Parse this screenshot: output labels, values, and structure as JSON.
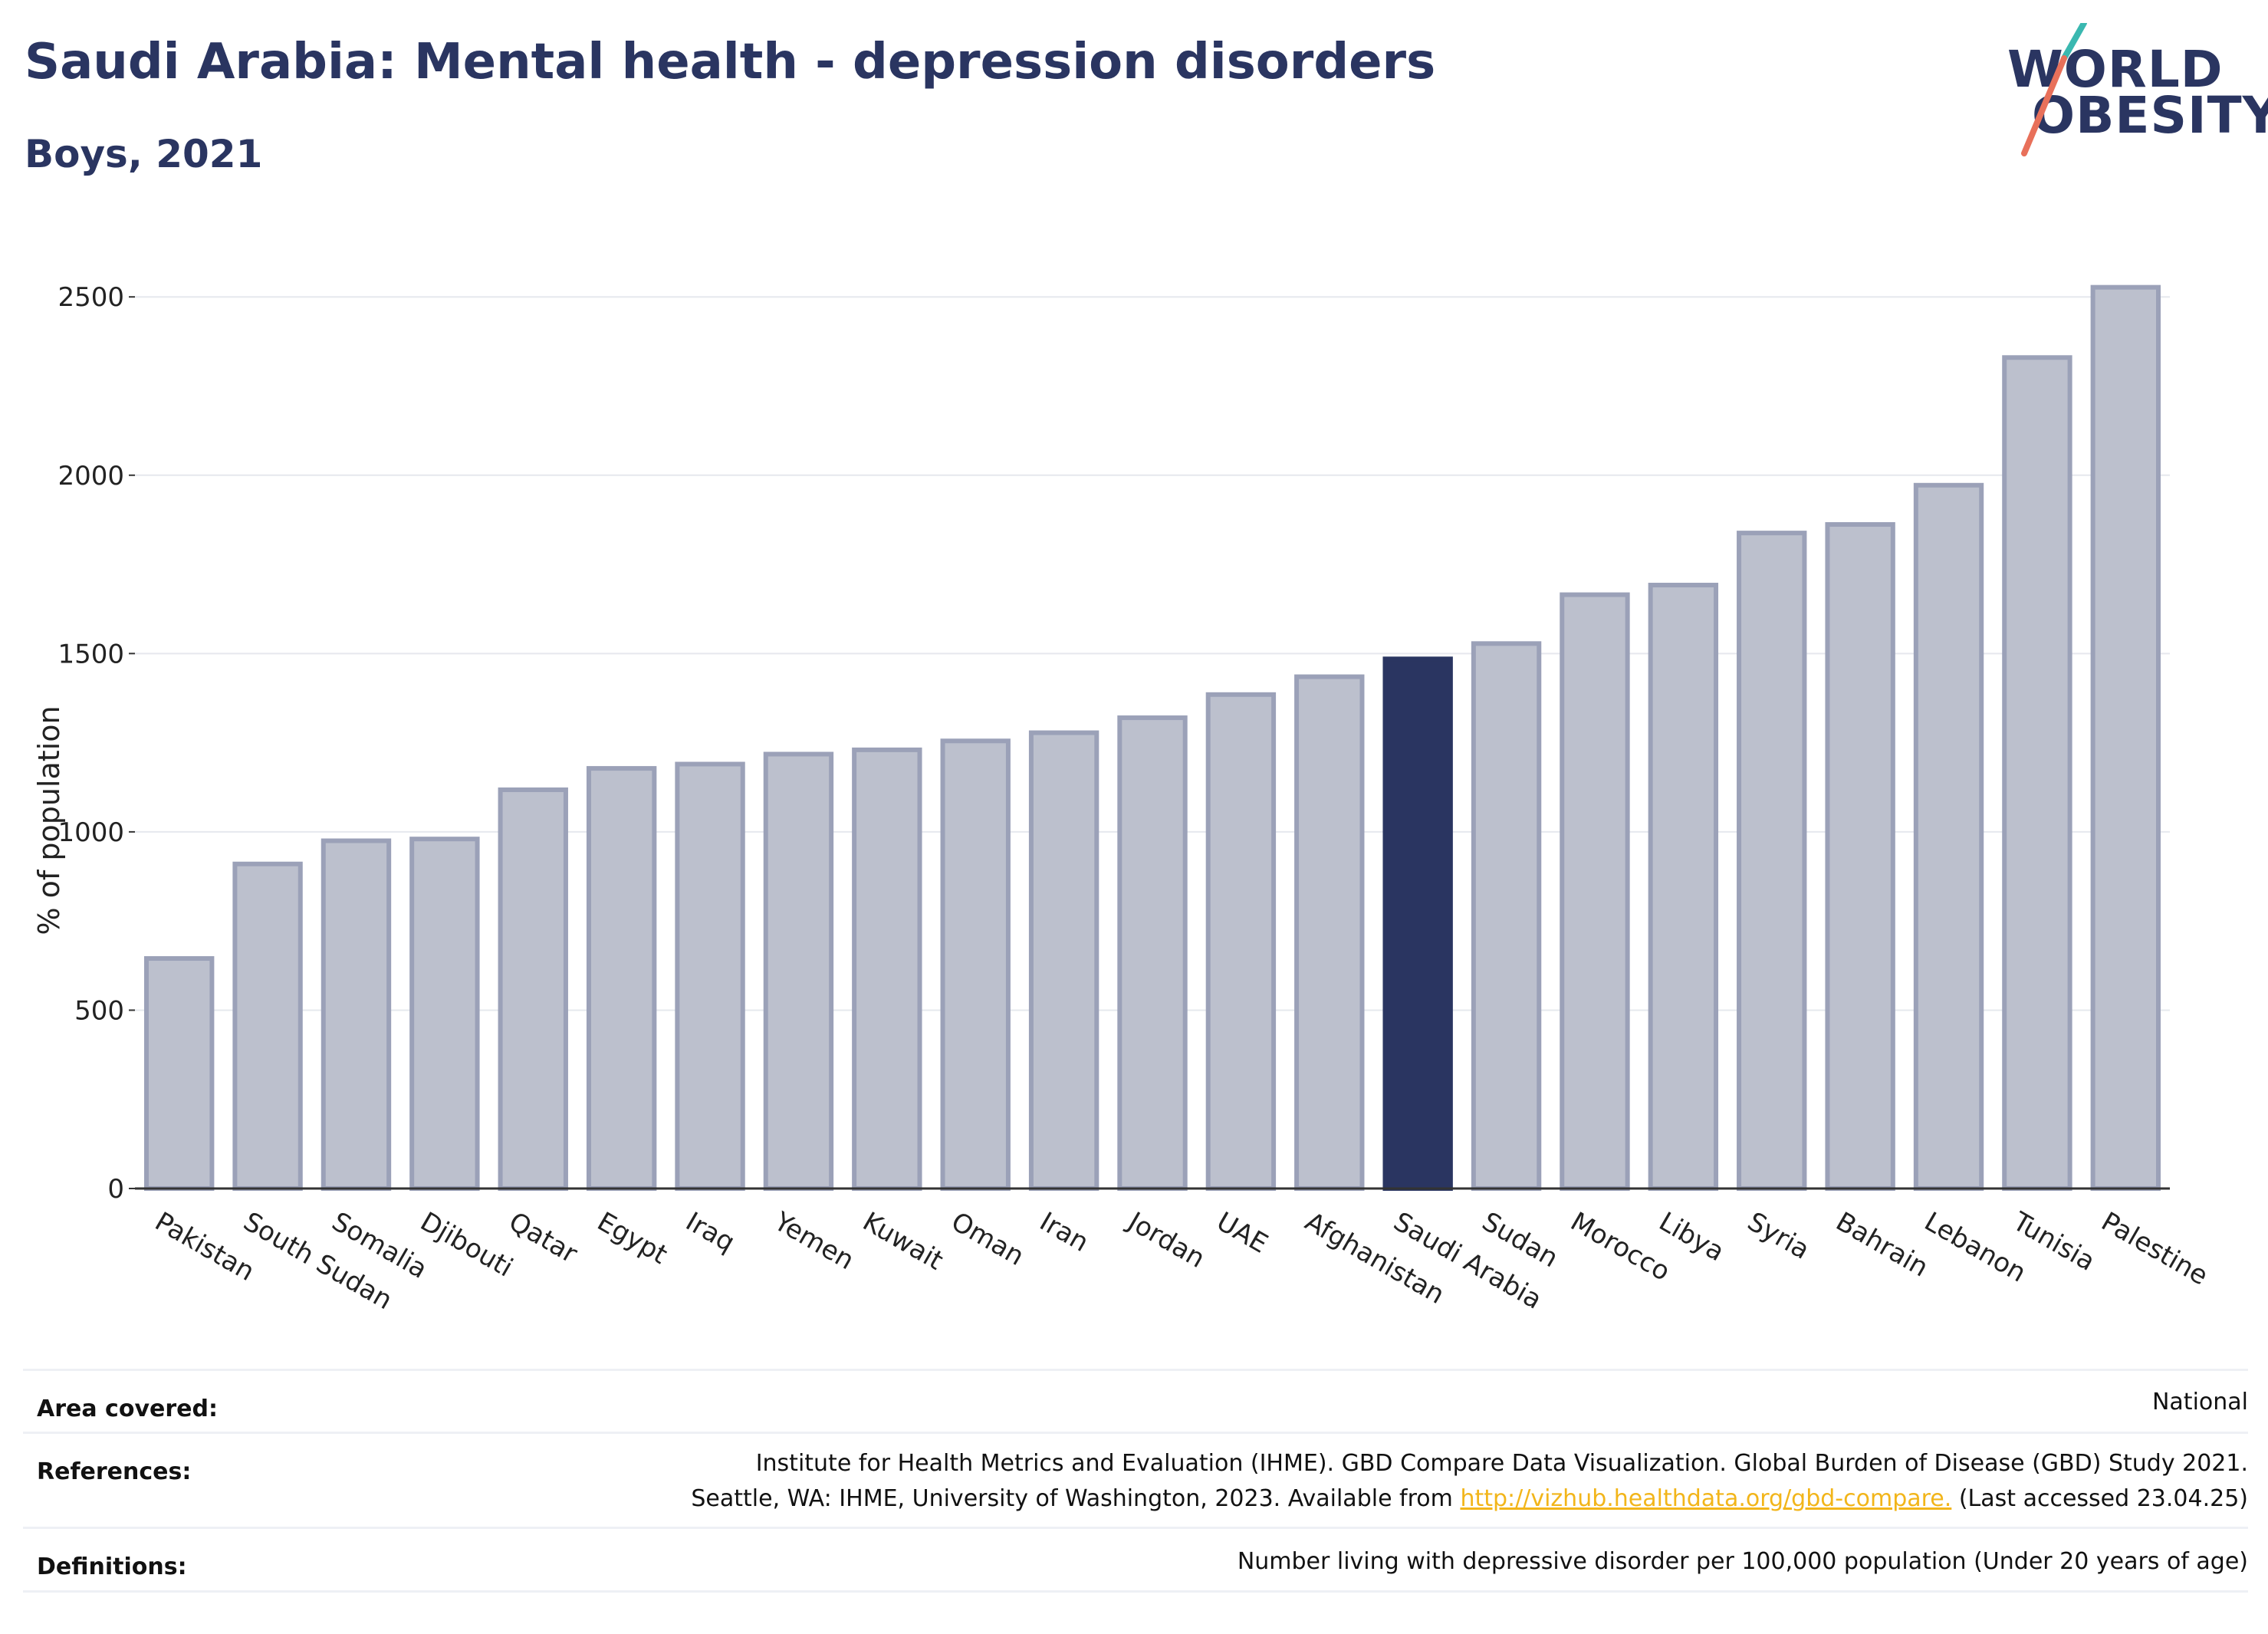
{
  "header": {
    "title": "Saudi Arabia: Mental health - depression disorders",
    "subtitle": "Boys, 2021"
  },
  "logo": {
    "line1": "WORLD",
    "line2": "OBESITY"
  },
  "colors": {
    "highlight": "#2a3561",
    "bar_fill": "#bcc0cd",
    "bar_stroke": "#9ba1b8",
    "link": "#f2b51a"
  },
  "chart_data": {
    "type": "bar",
    "title": "Saudi Arabia: Mental health - depression disorders",
    "subtitle": "Boys, 2021",
    "ylabel": "% of population",
    "xlabel": "",
    "ylim": [
      0,
      2580
    ],
    "yticks": [
      0,
      500,
      1000,
      1500,
      2000,
      2500
    ],
    "grid": true,
    "highlight": "Saudi Arabia",
    "categories": [
      "Pakistan",
      "South Sudan",
      "Somalia",
      "Djibouti",
      "Qatar",
      "Egypt",
      "Iraq",
      "Yemen",
      "Kuwait",
      "Oman",
      "Iran",
      "Jordan",
      "UAE",
      "Afghanistan",
      "Saudi Arabia",
      "Sudan",
      "Morocco",
      "Libya",
      "Syria",
      "Bahrain",
      "Lebanon",
      "Tunisia",
      "Palestine"
    ],
    "values": [
      645,
      910,
      975,
      980,
      1118,
      1178,
      1190,
      1218,
      1230,
      1255,
      1278,
      1320,
      1385,
      1435,
      1485,
      1528,
      1665,
      1692,
      1838,
      1862,
      1972,
      2330,
      2527
    ]
  },
  "footer": {
    "area_label": "Area covered:",
    "area_value": "National",
    "references_label": "References:",
    "references_line1": "Institute for Health Metrics and Evaluation (IHME). GBD Compare Data Visualization. Global Burden of Disease (GBD) Study 2021.",
    "references_line2_pre": "Seattle, WA: IHME, University of Washington, 2023. Available from",
    "references_link": "http://vizhub.healthdata.org/gbd-compare.",
    "references_line2_post": "(Last accessed 23.04.25)",
    "definitions_label": "Definitions:",
    "definitions_value": "Number living with depressive disorder per 100,000 population (Under 20 years of age)"
  }
}
